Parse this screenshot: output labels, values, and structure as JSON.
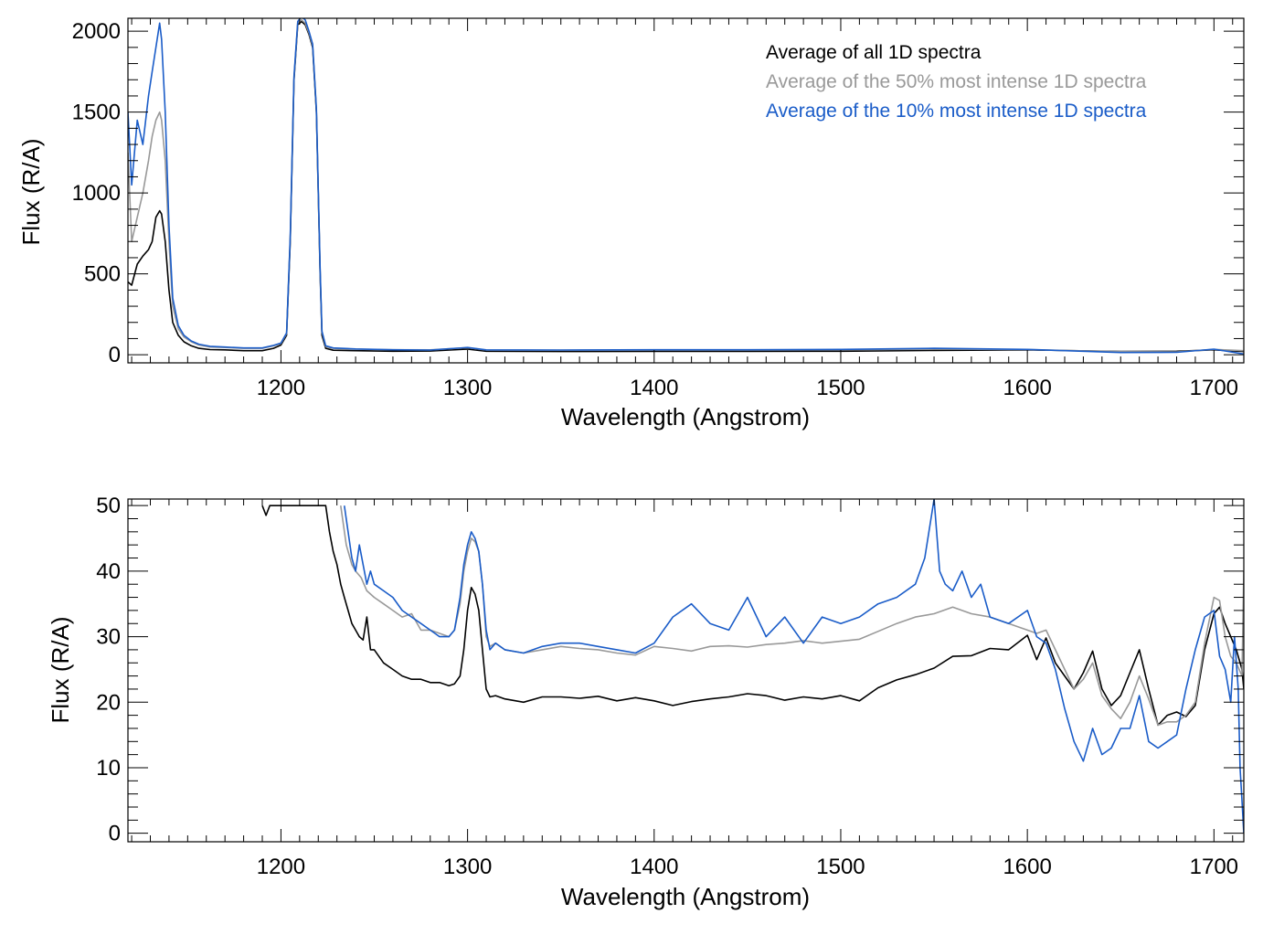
{
  "colors": {
    "all": "#000000",
    "top50": "#999999",
    "top10": "#1a5cc8"
  },
  "legend": [
    {
      "label": "Average of all 1D spectra",
      "color": "#000000"
    },
    {
      "label": "Average of the 50% most intense 1D spectra",
      "color": "#999999"
    },
    {
      "label": "Average of the 10% most intense 1D spectra",
      "color": "#1a5cc8"
    }
  ],
  "chart_data": [
    {
      "type": "line",
      "xlabel": "Wavelength (Angstrom)",
      "ylabel": "Flux (R/A)",
      "xlim": [
        1118,
        1716
      ],
      "ylim": [
        -50,
        2080
      ],
      "xticks": [
        1200,
        1300,
        1400,
        1500,
        1600,
        1700
      ],
      "yticks": [
        0,
        500,
        1000,
        1500,
        2000
      ],
      "legend_position": "top-right",
      "grid": false,
      "series": [
        {
          "name": "Average of all 1D spectra",
          "x": [
            1118,
            1120,
            1123,
            1126,
            1129,
            1131,
            1133,
            1135,
            1136,
            1138,
            1140,
            1142,
            1145,
            1148,
            1152,
            1156,
            1162,
            1170,
            1180,
            1190,
            1196,
            1200,
            1203,
            1205,
            1207,
            1209,
            1211,
            1213,
            1215,
            1217,
            1219,
            1221,
            1222,
            1224,
            1228,
            1240,
            1260,
            1280,
            1300,
            1310,
            1350,
            1400,
            1450,
            1500,
            1550,
            1600,
            1650,
            1680,
            1700,
            1716
          ],
          "y": [
            450,
            430,
            560,
            610,
            650,
            700,
            850,
            890,
            870,
            700,
            400,
            200,
            120,
            80,
            55,
            40,
            32,
            30,
            25,
            25,
            40,
            60,
            120,
            700,
            1700,
            2040,
            2060,
            2040,
            1980,
            1900,
            1500,
            500,
            120,
            40,
            28,
            25,
            22,
            23,
            35,
            22,
            20,
            21,
            21,
            22,
            27,
            30,
            20,
            22,
            30,
            20
          ]
        },
        {
          "name": "Average of the 50% most intense 1D spectra",
          "x": [
            1118,
            1120,
            1123,
            1126,
            1129,
            1131,
            1133,
            1135,
            1136,
            1138,
            1140,
            1142,
            1145,
            1148,
            1152,
            1156,
            1162,
            1170,
            1180,
            1190,
            1196,
            1200,
            1203,
            1205,
            1207,
            1209,
            1211,
            1213,
            1215,
            1217,
            1219,
            1221,
            1222,
            1224,
            1228,
            1240,
            1260,
            1280,
            1300,
            1310,
            1350,
            1400,
            1450,
            1500,
            1550,
            1600,
            1650,
            1680,
            1700,
            1716
          ],
          "y": [
            1250,
            700,
            850,
            1000,
            1200,
            1350,
            1450,
            1500,
            1450,
            1200,
            700,
            300,
            160,
            110,
            80,
            60,
            48,
            45,
            40,
            40,
            55,
            70,
            130,
            720,
            1710,
            2050,
            2070,
            2050,
            1990,
            1910,
            1510,
            520,
            140,
            50,
            40,
            35,
            31,
            30,
            44,
            29,
            28,
            29,
            29,
            30,
            35,
            32,
            19,
            18,
            33,
            25
          ]
        },
        {
          "name": "Average of the 10% most intense 1D spectra",
          "x": [
            1118,
            1120,
            1123,
            1126,
            1129,
            1131,
            1133,
            1135,
            1136,
            1138,
            1140,
            1142,
            1145,
            1148,
            1152,
            1156,
            1162,
            1170,
            1180,
            1190,
            1196,
            1200,
            1203,
            1205,
            1207,
            1209,
            1211,
            1213,
            1215,
            1217,
            1219,
            1221,
            1222,
            1224,
            1228,
            1240,
            1260,
            1280,
            1300,
            1310,
            1350,
            1400,
            1450,
            1500,
            1550,
            1600,
            1650,
            1680,
            1700,
            1716
          ],
          "y": [
            1500,
            1050,
            1450,
            1300,
            1600,
            1750,
            1900,
            2050,
            1950,
            1500,
            800,
            350,
            180,
            120,
            85,
            65,
            52,
            48,
            42,
            42,
            58,
            72,
            135,
            730,
            1720,
            2060,
            2090,
            2070,
            2000,
            1920,
            1520,
            530,
            145,
            55,
            42,
            36,
            31,
            29,
            45,
            30,
            29,
            31,
            31,
            33,
            40,
            33,
            14,
            15,
            35,
            5
          ]
        }
      ]
    },
    {
      "type": "line",
      "xlabel": "Wavelength (Angstrom)",
      "ylabel": "Flux (R/A)",
      "xlim": [
        1118,
        1716
      ],
      "ylim": [
        -1.3,
        51
      ],
      "xticks": [
        1200,
        1300,
        1400,
        1500,
        1600,
        1700
      ],
      "yticks": [
        0,
        10,
        20,
        30,
        40,
        50
      ],
      "grid": false,
      "series": [
        {
          "name": "Average of all 1D spectra",
          "x": [
            1190,
            1192,
            1194,
            1224,
            1226,
            1228,
            1230,
            1232,
            1234,
            1236,
            1238,
            1240,
            1242,
            1244,
            1246,
            1248,
            1250,
            1255,
            1260,
            1265,
            1270,
            1275,
            1280,
            1285,
            1290,
            1293,
            1296,
            1298,
            1300,
            1302,
            1304,
            1306,
            1308,
            1310,
            1312,
            1315,
            1320,
            1330,
            1340,
            1350,
            1360,
            1370,
            1380,
            1390,
            1400,
            1410,
            1420,
            1430,
            1440,
            1450,
            1460,
            1470,
            1480,
            1490,
            1500,
            1510,
            1520,
            1530,
            1540,
            1550,
            1560,
            1570,
            1580,
            1590,
            1600,
            1605,
            1610,
            1615,
            1620,
            1625,
            1630,
            1635,
            1640,
            1645,
            1650,
            1655,
            1660,
            1665,
            1670,
            1675,
            1680,
            1685,
            1690,
            1695,
            1700,
            1703,
            1706,
            1709,
            1712,
            1715,
            1716
          ],
          "y": [
            50,
            48.5,
            50,
            50,
            46,
            43,
            41,
            38,
            36,
            34,
            32,
            31,
            30,
            29.5,
            33,
            28,
            28,
            26,
            25,
            24,
            23.5,
            23.5,
            23,
            23,
            22.5,
            22.8,
            24,
            28,
            34,
            37.5,
            36.5,
            34,
            28,
            22,
            20.8,
            21,
            20.5,
            20,
            20.8,
            20.8,
            20.6,
            20.9,
            20.2,
            20.7,
            20.2,
            19.5,
            20.1,
            20.5,
            20.8,
            21.3,
            21,
            20.3,
            20.8,
            20.5,
            21,
            20.2,
            22.2,
            23.4,
            24.2,
            25.2,
            27,
            27.1,
            28.2,
            28,
            30.2,
            26.5,
            29.8,
            26,
            24,
            22,
            24.5,
            27.8,
            22,
            19.5,
            21,
            24.5,
            28,
            22,
            16.5,
            18,
            18.5,
            17.8,
            19.5,
            28,
            33.5,
            34.5,
            32,
            30,
            28,
            25,
            22
          ]
        },
        {
          "name": "Average of the 50% most intense 1D spectra",
          "x": [
            1232,
            1235,
            1238,
            1240,
            1243,
            1246,
            1250,
            1255,
            1260,
            1265,
            1270,
            1275,
            1280,
            1285,
            1290,
            1293,
            1296,
            1298,
            1300,
            1302,
            1304,
            1306,
            1308,
            1310,
            1312,
            1315,
            1320,
            1330,
            1340,
            1350,
            1360,
            1370,
            1380,
            1390,
            1400,
            1410,
            1420,
            1430,
            1440,
            1450,
            1460,
            1470,
            1480,
            1490,
            1500,
            1510,
            1520,
            1530,
            1540,
            1550,
            1555,
            1560,
            1570,
            1580,
            1590,
            1600,
            1605,
            1610,
            1615,
            1620,
            1625,
            1630,
            1635,
            1640,
            1645,
            1650,
            1655,
            1660,
            1665,
            1670,
            1675,
            1680,
            1685,
            1690,
            1695,
            1700,
            1703,
            1706,
            1709,
            1712,
            1715,
            1716
          ],
          "y": [
            50,
            44,
            41,
            40,
            39,
            37,
            36,
            35,
            34,
            33,
            33.5,
            31,
            31,
            30.5,
            30,
            31,
            35,
            40,
            43,
            45,
            44.5,
            43,
            38,
            30,
            28.5,
            29,
            28,
            27.5,
            28,
            28.5,
            28.2,
            28,
            27.5,
            27.2,
            28.5,
            28.2,
            27.8,
            28.5,
            28.6,
            28.4,
            28.8,
            29,
            29.4,
            29,
            29.3,
            29.6,
            30.8,
            32,
            33,
            33.5,
            34,
            34.5,
            33.5,
            33,
            32,
            31,
            30.5,
            31,
            28,
            25,
            22,
            23.5,
            26,
            21,
            19,
            17.5,
            20,
            24,
            20.5,
            16.5,
            17,
            17,
            18,
            20,
            29,
            36,
            35.5,
            30,
            27,
            26,
            24,
            40
          ]
        },
        {
          "name": "Average of the 10% most intense 1D spectra",
          "x": [
            1234,
            1236,
            1238,
            1240,
            1242,
            1244,
            1246,
            1248,
            1250,
            1255,
            1260,
            1265,
            1270,
            1275,
            1280,
            1285,
            1290,
            1293,
            1296,
            1298,
            1300,
            1302,
            1304,
            1306,
            1308,
            1310,
            1312,
            1315,
            1320,
            1330,
            1340,
            1350,
            1360,
            1370,
            1380,
            1390,
            1400,
            1410,
            1420,
            1430,
            1440,
            1450,
            1460,
            1470,
            1480,
            1490,
            1500,
            1510,
            1520,
            1530,
            1540,
            1545,
            1550,
            1553,
            1556,
            1560,
            1565,
            1570,
            1575,
            1580,
            1590,
            1600,
            1605,
            1610,
            1615,
            1620,
            1625,
            1630,
            1635,
            1640,
            1645,
            1650,
            1655,
            1660,
            1665,
            1670,
            1675,
            1680,
            1685,
            1690,
            1695,
            1700,
            1703,
            1706,
            1709,
            1711,
            1713,
            1714,
            1715,
            1716
          ],
          "y": [
            50,
            46,
            42,
            40,
            44,
            41,
            38,
            40,
            38,
            37,
            36,
            34,
            33,
            32,
            31,
            30,
            30,
            31,
            36,
            41,
            44,
            46,
            45,
            43,
            38,
            31,
            28,
            29,
            28,
            27.5,
            28.5,
            29,
            29,
            28.5,
            28,
            27.5,
            29,
            33,
            35,
            32,
            31,
            36,
            30,
            33,
            29,
            33,
            32,
            33,
            35,
            36,
            38,
            42,
            51,
            40,
            38,
            37,
            40,
            36,
            38,
            33,
            32,
            34,
            30,
            29,
            25,
            19,
            14,
            11,
            16,
            12,
            13,
            16,
            16,
            21,
            14,
            13,
            14,
            15,
            22,
            28,
            33,
            34,
            27,
            25,
            20,
            30,
            22,
            10,
            5,
            0
          ]
        }
      ]
    }
  ]
}
